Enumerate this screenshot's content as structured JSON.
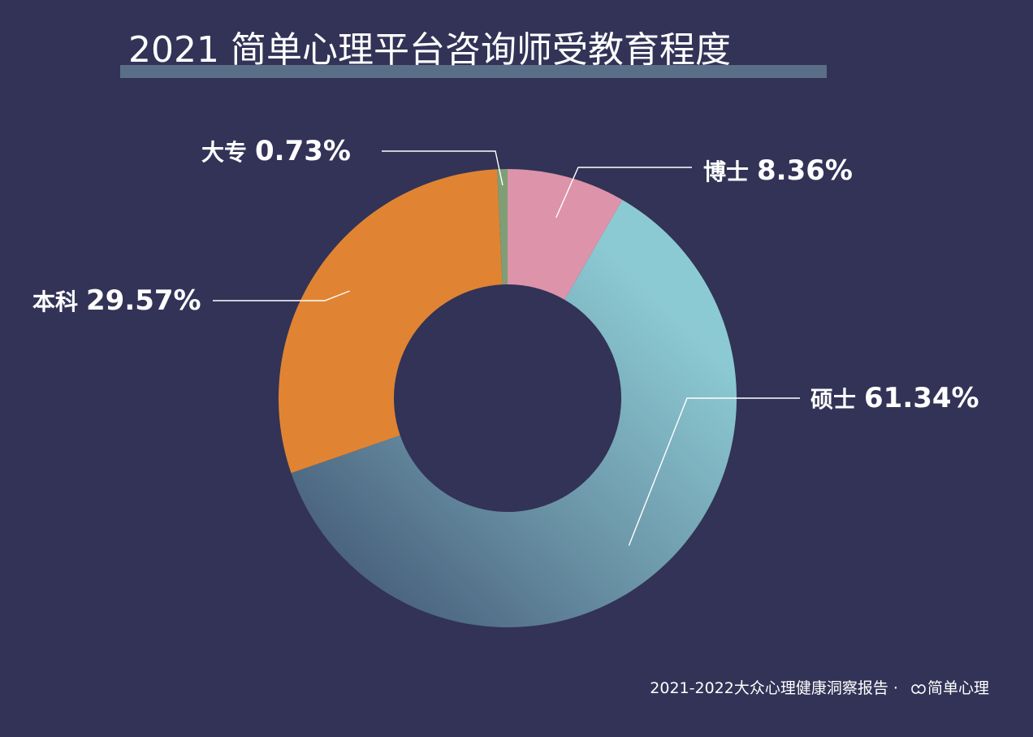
{
  "title": "2021 简单心理平台咨询师受教育程度",
  "chart_data": {
    "type": "pie",
    "donut": true,
    "title": "2021 简单心理平台咨询师受教育程度",
    "slices": [
      {
        "label": "博士",
        "value": 8.36,
        "value_label": "8.36%",
        "color": "#dd93aa"
      },
      {
        "label": "硕士",
        "value": 61.34,
        "value_label": "61.34%",
        "color": "#8ccad3"
      },
      {
        "label": "本科",
        "value": 29.57,
        "value_label": "29.57%",
        "color": "#e08433"
      },
      {
        "label": "大专",
        "value": 0.73,
        "value_label": "0.73%",
        "color": "#7f9e76"
      }
    ],
    "legend": "none"
  },
  "footer": {
    "text": "2021-2022大众心理健康洞察报告 · ",
    "brand": "简单心理"
  }
}
